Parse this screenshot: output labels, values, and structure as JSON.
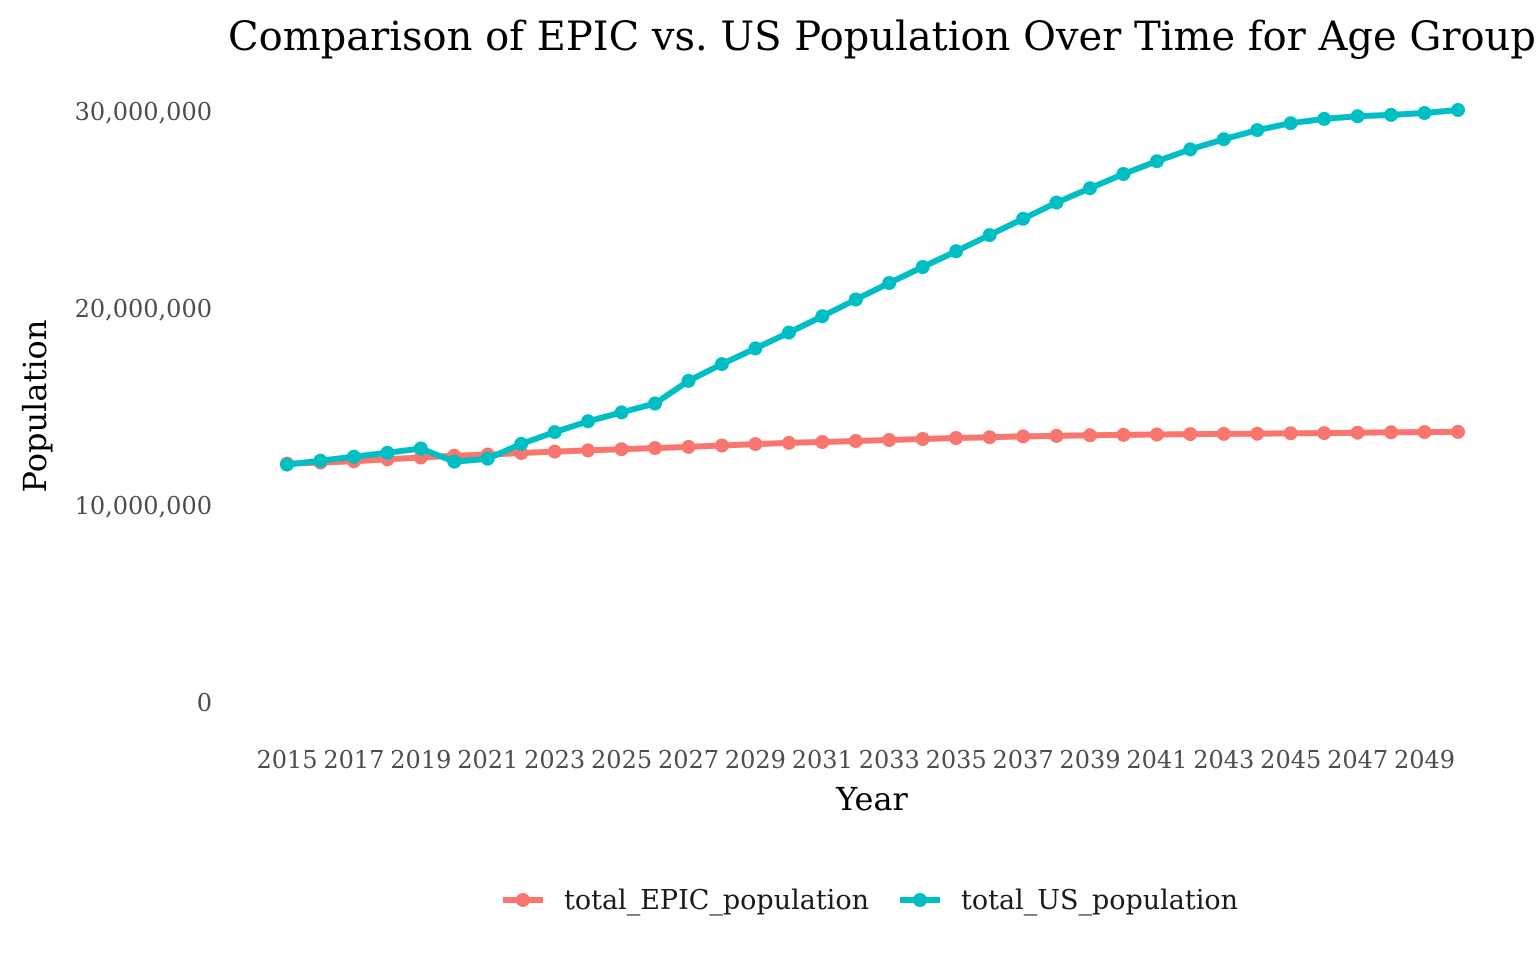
{
  "chart_data": {
    "type": "line",
    "title": "Comparison of EPIC vs. US Population Over Time for Age Group",
    "xlabel": "Year",
    "ylabel": "Population",
    "ylim": [
      0,
      30000000
    ],
    "yticks": [
      0,
      10000000,
      20000000,
      30000000
    ],
    "ytick_labels": [
      "0",
      "10,000,000",
      "20,000,000",
      "30,000,000"
    ],
    "x": [
      2015,
      2016,
      2017,
      2018,
      2019,
      2020,
      2021,
      2022,
      2023,
      2024,
      2025,
      2026,
      2027,
      2028,
      2029,
      2030,
      2031,
      2032,
      2033,
      2034,
      2035,
      2036,
      2037,
      2038,
      2039,
      2040,
      2041,
      2042,
      2043,
      2044,
      2045,
      2046,
      2047,
      2048,
      2049,
      2050
    ],
    "xtick_labels": [
      "2015",
      "2017",
      "2019",
      "2021",
      "2023",
      "2025",
      "2027",
      "2029",
      "2031",
      "2033",
      "2035",
      "2037",
      "2039",
      "2041",
      "2043",
      "2045",
      "2047",
      "2049"
    ],
    "grid": false,
    "legend_position": "bottom",
    "series": [
      {
        "name": "total_EPIC_population",
        "color": "#F8766D",
        "values": [
          12100000,
          12150000,
          12220000,
          12320000,
          12410000,
          12500000,
          12560000,
          12640000,
          12710000,
          12770000,
          12830000,
          12890000,
          12950000,
          13020000,
          13090000,
          13150000,
          13200000,
          13250000,
          13300000,
          13350000,
          13400000,
          13440000,
          13480000,
          13510000,
          13540000,
          13560000,
          13580000,
          13600000,
          13610000,
          13620000,
          13640000,
          13650000,
          13670000,
          13690000,
          13700000,
          13710000
        ]
      },
      {
        "name": "total_US_population",
        "color": "#00BFC4",
        "values": [
          12050000,
          12250000,
          12450000,
          12650000,
          12870000,
          12200000,
          12350000,
          13100000,
          13700000,
          14250000,
          14700000,
          15150000,
          16300000,
          17150000,
          17950000,
          18750000,
          19580000,
          20430000,
          21270000,
          22080000,
          22880000,
          23700000,
          24530000,
          25350000,
          26080000,
          26800000,
          27450000,
          28050000,
          28570000,
          29030000,
          29380000,
          29600000,
          29730000,
          29800000,
          29900000,
          30050000
        ]
      }
    ]
  }
}
